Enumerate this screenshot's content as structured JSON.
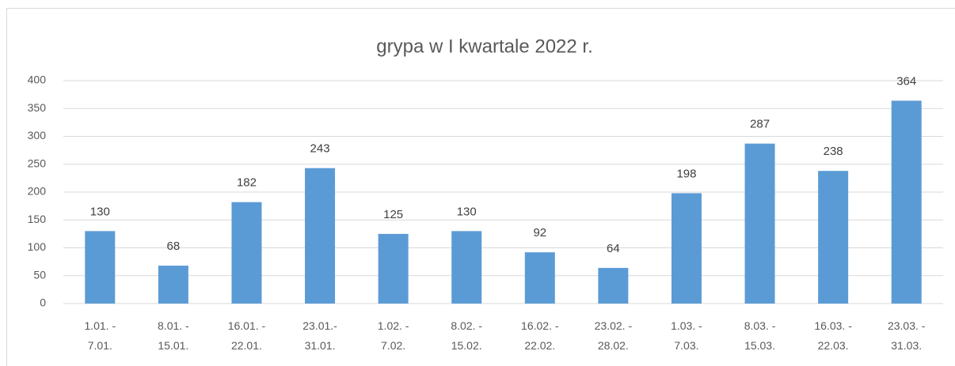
{
  "chart_data": {
    "type": "bar",
    "title": "grypa w I kwartale 2022 r.",
    "categories": [
      "1.01. -\n7.01.",
      "8.01. -\n15.01.",
      "16.01. -\n22.01.",
      "23.01.-\n31.01.",
      "1.02. -\n7.02.",
      "8.02. -\n15.02.",
      "16.02. -\n22.02.",
      "23.02. -\n28.02.",
      "1.03. -\n7.03.",
      "8.03. -\n15.03.",
      "16.03. -\n22.03.",
      "23.03. -\n31.03."
    ],
    "values": [
      130,
      68,
      182,
      243,
      125,
      130,
      92,
      64,
      198,
      287,
      238,
      364
    ],
    "color": "#5b9bd5",
    "ylim": [
      0,
      400
    ],
    "yticks": [
      0,
      50,
      100,
      150,
      200,
      250,
      300,
      350,
      400
    ],
    "grid": true
  }
}
